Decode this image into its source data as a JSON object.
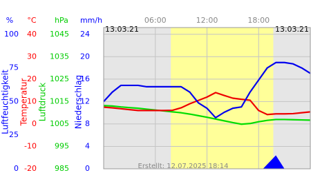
{
  "chart_data": {
    "type": "line",
    "dates": [
      "13.03.21",
      "13.03.21"
    ],
    "credit": "Erstellt: 12.07.2025 18:14",
    "xlim": [
      0,
      24
    ],
    "xticks": [
      {
        "value": 6,
        "label": "06:00"
      },
      {
        "value": 12,
        "label": "12:00"
      },
      {
        "value": 18,
        "label": "18:00"
      }
    ],
    "daylight": [
      7.8,
      19.7
    ],
    "grid": true,
    "axes": [
      {
        "name": "Luftfeuchtigkeit",
        "unit": "%",
        "color": "#0000ff",
        "ylim": [
          0,
          105
        ],
        "yticks": [
          0,
          25,
          50,
          75,
          100
        ]
      },
      {
        "name": "Temperatur",
        "unit": "°C",
        "color": "#ff0000",
        "ylim": [
          -20,
          43
        ],
        "yticks": [
          -20,
          -10,
          0,
          10,
          20,
          30,
          40
        ]
      },
      {
        "name": "Luftdruck",
        "unit": "hPa",
        "color": "#00cc00",
        "ylim": [
          985,
          1048
        ],
        "yticks": [
          985,
          995,
          1005,
          1015,
          1025,
          1035,
          1045
        ]
      },
      {
        "name": "Niederschlag",
        "unit": "mm/h",
        "color": "#0000ff",
        "ylim": [
          0,
          25.2
        ],
        "yticks": [
          0,
          4,
          8,
          12,
          16,
          20,
          24
        ]
      }
    ],
    "x": [
      0,
      1,
      2,
      3,
      4,
      5,
      6,
      7,
      8,
      9,
      10,
      11,
      12,
      13,
      14,
      15,
      16,
      17,
      18,
      19,
      20,
      21,
      22,
      23,
      24
    ],
    "series": [
      {
        "axis": 2,
        "color": "#00dd00",
        "values": [
          1013.2,
          1013,
          1012.6,
          1012.3,
          1012,
          1011.6,
          1011.2,
          1010.8,
          1010.4,
          1010,
          1009.4,
          1008.7,
          1008,
          1007.2,
          1006.4,
          1005.6,
          1004.9,
          1005.2,
          1006,
          1006.6,
          1007,
          1007,
          1006.9,
          1006.8,
          1006.7
        ]
      },
      {
        "axis": 1,
        "color": "#ee0000",
        "values": [
          7.5,
          7.2,
          6.8,
          6.4,
          6,
          6,
          6,
          6,
          6.1,
          7.2,
          9,
          10.5,
          12,
          14,
          12.7,
          11.5,
          11,
          10.6,
          6,
          4.2,
          4.5,
          4.5,
          4.6,
          5,
          5.4
        ]
      },
      {
        "axis": 0,
        "color": "#0000ee",
        "values": [
          50,
          57,
          62,
          62,
          62,
          61,
          61,
          61,
          61,
          61,
          57,
          49,
          45,
          38,
          42,
          45,
          46,
          57,
          66,
          75,
          79,
          79,
          78,
          75,
          71
        ]
      }
    ],
    "precipitation": {
      "axis": 3,
      "color": "#0000ff",
      "x": [
        18.5,
        19,
        19.5,
        20,
        20.5,
        21
      ],
      "values": [
        0,
        0.8,
        1.6,
        2.4,
        1.2,
        0
      ]
    }
  }
}
